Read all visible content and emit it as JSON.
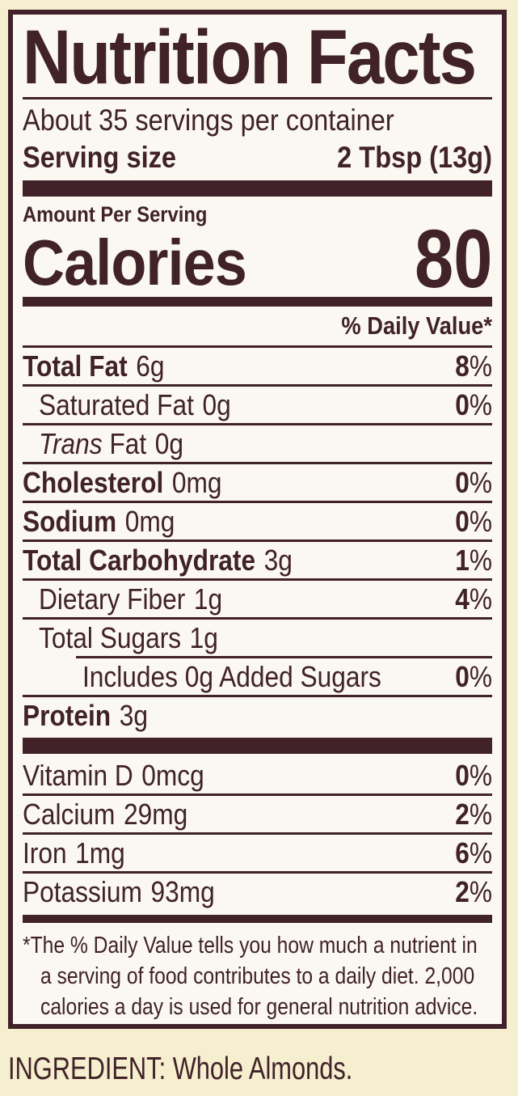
{
  "colors": {
    "background": "#f5eecf",
    "label_background": "#faf8f1",
    "ink": "#402228"
  },
  "label": {
    "title": "Nutrition Facts",
    "servings_per_container": "About 35 servings per container",
    "serving_size_label": "Serving size",
    "serving_size_value": "2 Tbsp (13g)",
    "amount_per_serving": "Amount Per Serving",
    "calories_label": "Calories",
    "calories_value": "80",
    "daily_value_header": "% Daily Value*",
    "nutrients": [
      {
        "name": "Total Fat",
        "amount": "6g",
        "dv": "8",
        "bold": true,
        "indent": 0
      },
      {
        "name": "Saturated Fat",
        "amount": "0g",
        "dv": "0",
        "bold": false,
        "indent": 1
      },
      {
        "name_italic": "Trans",
        "name": "Fat",
        "amount": "0g",
        "dv": null,
        "bold": false,
        "indent": 1
      },
      {
        "name": "Cholesterol",
        "amount": "0mg",
        "dv": "0",
        "bold": true,
        "indent": 0
      },
      {
        "name": "Sodium",
        "amount": "0mg",
        "dv": "0",
        "bold": true,
        "indent": 0
      },
      {
        "name": "Total Carbohydrate",
        "amount": "3g",
        "dv": "1",
        "bold": true,
        "indent": 0
      },
      {
        "name": "Dietary Fiber",
        "amount": "1g",
        "dv": "4",
        "bold": false,
        "indent": 1
      },
      {
        "name": "Total Sugars",
        "amount": "1g",
        "dv": null,
        "bold": false,
        "indent": 1
      },
      {
        "name": "Includes 0g Added Sugars",
        "amount": "",
        "dv": "0",
        "bold": false,
        "indent": 2,
        "separator_indent": true
      },
      {
        "name": "Protein",
        "amount": "3g",
        "dv": null,
        "bold": true,
        "indent": 0
      }
    ],
    "micronutrients": [
      {
        "name": "Vitamin D",
        "amount": "0mcg",
        "dv": "0"
      },
      {
        "name": "Calcium",
        "amount": "29mg",
        "dv": "2"
      },
      {
        "name": "Iron",
        "amount": "1mg",
        "dv": "6"
      },
      {
        "name": "Potassium",
        "amount": "93mg",
        "dv": "2"
      }
    ],
    "footnote_lines": [
      "*The % Daily Value tells you how much a nutrient in",
      "a serving of food contributes to a daily diet. 2,000",
      "calories a day is used for general nutrition advice."
    ]
  },
  "ingredient_line": "INGREDIENT: Whole Almonds."
}
